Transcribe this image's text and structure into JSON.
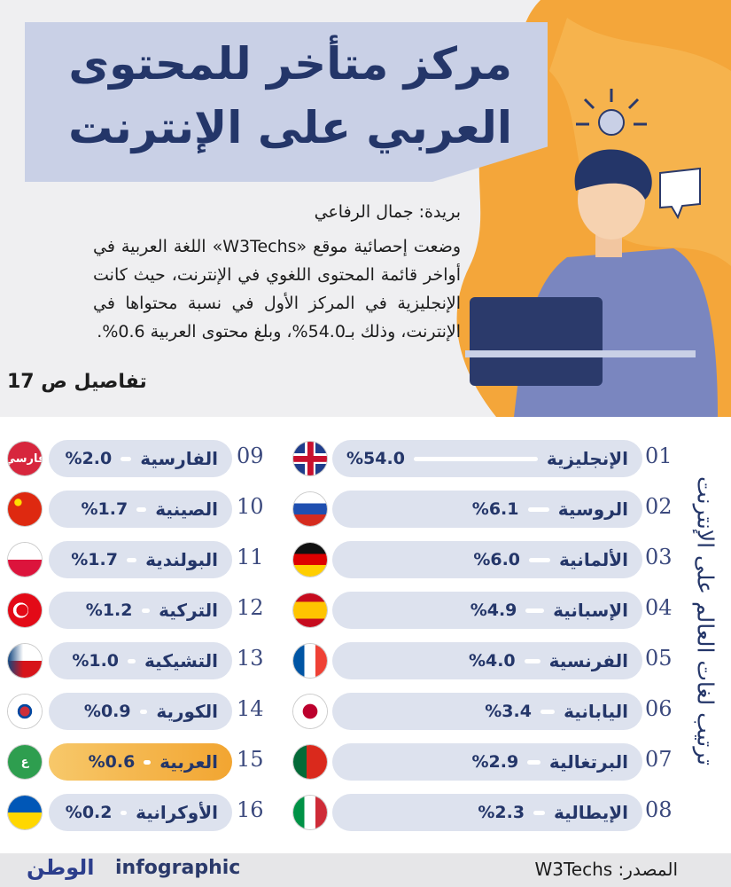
{
  "header": {
    "title_lines": [
      "مركز متأخر للمحتوى",
      "العربي على الإنترنت"
    ]
  },
  "article": {
    "byline": "بريدة: جمال الرفاعي",
    "body": "وضعت إحصائية موقع «W3Techs» اللغة العربية في أواخر قائمة المحتوى اللغوي في الإنترنت، حيث كانت الإنجليزية في المركز الأول في نسبة محتواها في الإنترنت، وذلك بـ54.0%، وبلغ محتوى العربية 0.6%.",
    "more": "تفاصيل ص 17"
  },
  "chart_data": {
    "type": "bar",
    "title": "ترتيب لغات العالم على الإنترنت",
    "ranks": [
      "01",
      "02",
      "03",
      "04",
      "05",
      "06",
      "07",
      "08",
      "09",
      "10",
      "11",
      "12",
      "13",
      "14",
      "15",
      "16"
    ],
    "categories": [
      "الإنجليزية",
      "الروسية",
      "الألمانية",
      "الإسبانية",
      "الفرنسية",
      "اليابانية",
      "البرتغالية",
      "الإيطالية",
      "الفارسية",
      "الصينية",
      "البولندية",
      "التركية",
      "التشيكية",
      "الكورية",
      "العربية",
      "الأوكرانية"
    ],
    "values": [
      54.0,
      6.1,
      6.0,
      4.9,
      4.0,
      3.4,
      2.9,
      2.3,
      2.0,
      1.7,
      1.7,
      1.2,
      1.0,
      0.9,
      0.6,
      0.2
    ],
    "value_labels": [
      "%54.0",
      "%6.1",
      "%6.0",
      "%4.9",
      "%4.0",
      "%3.4",
      "%2.9",
      "%2.3",
      "%2.0",
      "%1.7",
      "%1.7",
      "%1.2",
      "%1.0",
      "%0.9",
      "%0.6",
      "%0.2"
    ],
    "color": "#ffffff"
  },
  "icons": {
    "farsi": "فارسي",
    "arabic": "ع"
  },
  "footer": {
    "source": "المصدر: W3Techs",
    "brand": "infographic",
    "logo": "الوطن"
  }
}
